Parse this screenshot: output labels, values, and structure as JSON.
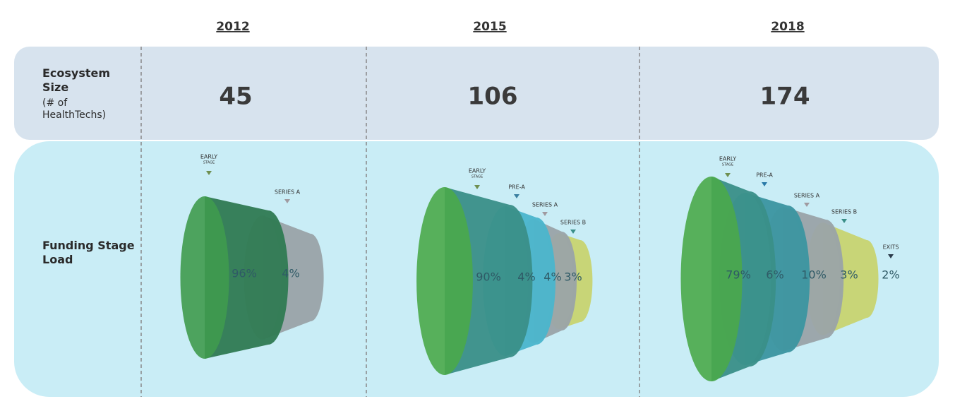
{
  "row_labels": {
    "size_title": "Ecosystem Size",
    "size_note": "(# of HealthTechs)",
    "funding": "Funding Stage Load"
  },
  "columns": [
    {
      "year": "2012",
      "size": "45",
      "stages": [
        {
          "name": "EARLY",
          "sub": "STAGE",
          "share": "96%"
        },
        {
          "name": "SERIES A",
          "share": "4%"
        }
      ]
    },
    {
      "year": "2015",
      "size": "106",
      "stages": [
        {
          "name": "EARLY",
          "sub": "STAGE",
          "share": "90%"
        },
        {
          "name": "PRE-A",
          "share": "4%"
        },
        {
          "name": "SERIES A",
          "share": "4%"
        },
        {
          "name": "SERIES B",
          "share": "3%"
        }
      ]
    },
    {
      "year": "2018",
      "size": "174",
      "stages": [
        {
          "name": "EARLY",
          "sub": "STAGE",
          "share": "79%"
        },
        {
          "name": "PRE-A",
          "share": "6%"
        },
        {
          "name": "SERIES A",
          "share": "10%"
        },
        {
          "name": "SERIES B",
          "share": "3%"
        },
        {
          "name": "EXITS",
          "share": "2%"
        }
      ]
    }
  ]
}
